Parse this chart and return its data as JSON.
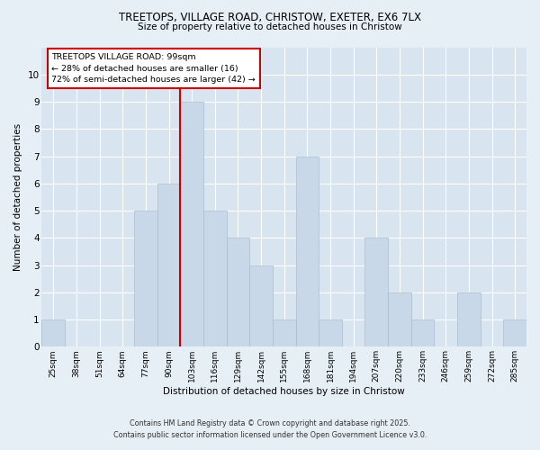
{
  "title1": "TREETOPS, VILLAGE ROAD, CHRISTOW, EXETER, EX6 7LX",
  "title2": "Size of property relative to detached houses in Christow",
  "xlabel": "Distribution of detached houses by size in Christow",
  "ylabel": "Number of detached properties",
  "categories": [
    "25sqm",
    "38sqm",
    "51sqm",
    "64sqm",
    "77sqm",
    "90sqm",
    "103sqm",
    "116sqm",
    "129sqm",
    "142sqm",
    "155sqm",
    "168sqm",
    "181sqm",
    "194sqm",
    "207sqm",
    "220sqm",
    "233sqm",
    "246sqm",
    "259sqm",
    "272sqm",
    "285sqm"
  ],
  "values": [
    1,
    0,
    0,
    0,
    5,
    6,
    9,
    5,
    4,
    3,
    1,
    7,
    1,
    0,
    4,
    2,
    1,
    0,
    2,
    0,
    1
  ],
  "bar_color": "#c8d8e8",
  "bar_edgecolor": "#aabccc",
  "ref_line_index": 6,
  "ref_line_color": "#cc0000",
  "annotation_title": "TREETOPS VILLAGE ROAD: 99sqm",
  "annotation_line1": "← 28% of detached houses are smaller (16)",
  "annotation_line2": "72% of semi-detached houses are larger (42) →",
  "annotation_box_edgecolor": "#cc0000",
  "ylim": [
    0,
    11
  ],
  "yticks": [
    0,
    1,
    2,
    3,
    4,
    5,
    6,
    7,
    8,
    9,
    10,
    11
  ],
  "footnote1": "Contains HM Land Registry data © Crown copyright and database right 2025.",
  "footnote2": "Contains public sector information licensed under the Open Government Licence v3.0.",
  "bg_color": "#e6eef6",
  "plot_bg_color": "#d8e4f0"
}
